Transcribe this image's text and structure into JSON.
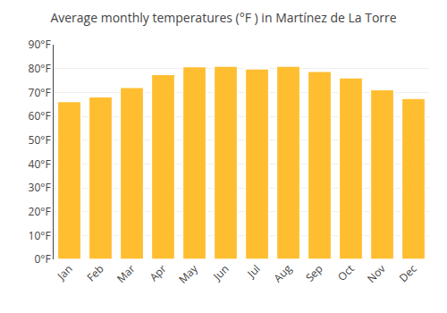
{
  "chart_data": {
    "type": "bar",
    "title": "Average monthly temperatures (°F ) in Martínez de La Torre",
    "categories": [
      "Jan",
      "Feb",
      "Mar",
      "Apr",
      "May",
      "Jun",
      "Jul",
      "Aug",
      "Sep",
      "Oct",
      "Nov",
      "Dec"
    ],
    "values": [
      66.2,
      68.2,
      72.1,
      77.5,
      80.8,
      81.0,
      79.9,
      81.0,
      78.8,
      76.1,
      71.2,
      67.5
    ],
    "color": "#FFBE30",
    "ylim": [
      0,
      90
    ],
    "yticks": [
      {
        "value": 0,
        "label": "0°F"
      },
      {
        "value": 10,
        "label": "10°F"
      },
      {
        "value": 20,
        "label": "20°F"
      },
      {
        "value": 30,
        "label": "30°F"
      },
      {
        "value": 40,
        "label": "40°F"
      },
      {
        "value": 50,
        "label": "50°F"
      },
      {
        "value": 60,
        "label": "60°F"
      },
      {
        "value": 70,
        "label": "70°F"
      },
      {
        "value": 80,
        "label": "80°F"
      },
      {
        "value": 90,
        "label": "90°F"
      }
    ],
    "grid": true
  }
}
